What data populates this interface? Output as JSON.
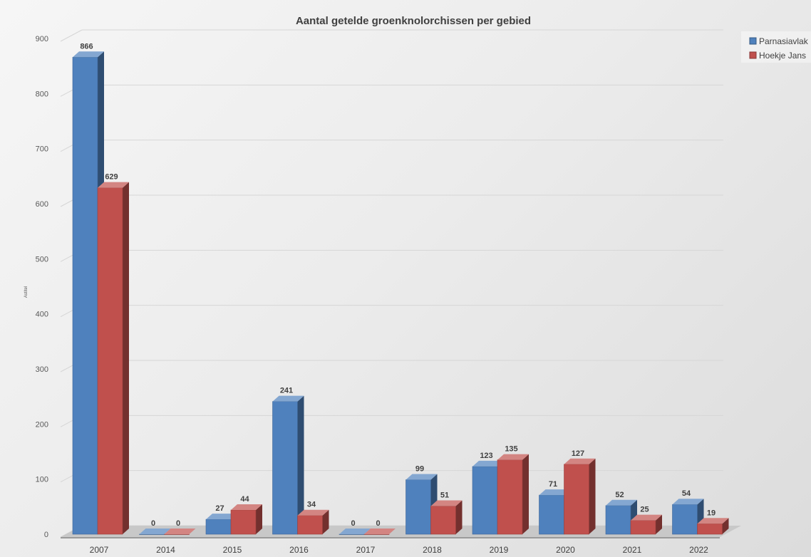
{
  "chart_data": {
    "type": "bar",
    "title": "Aantal getelde groenknolorchissen per gebied",
    "ylabel": "Astitel",
    "xlabel": "",
    "categories": [
      "2007",
      "2014",
      "2015",
      "2016",
      "2017",
      "2018",
      "2019",
      "2020",
      "2021",
      "2022"
    ],
    "series": [
      {
        "name": "Parnasiavlak",
        "color": "#4f81bd",
        "values": [
          866,
          0,
          27,
          241,
          0,
          99,
          123,
          71,
          52,
          54
        ]
      },
      {
        "name": "Hoekje Jans",
        "color": "#c0504d",
        "values": [
          629,
          0,
          44,
          34,
          0,
          51,
          135,
          127,
          25,
          19
        ]
      }
    ],
    "ylim": [
      0,
      900
    ],
    "yticks": [
      0,
      100,
      200,
      300,
      400,
      500,
      600,
      700,
      800,
      900
    ],
    "grid": true,
    "legend_position": "top-right",
    "style": "3d-clustered-column"
  }
}
